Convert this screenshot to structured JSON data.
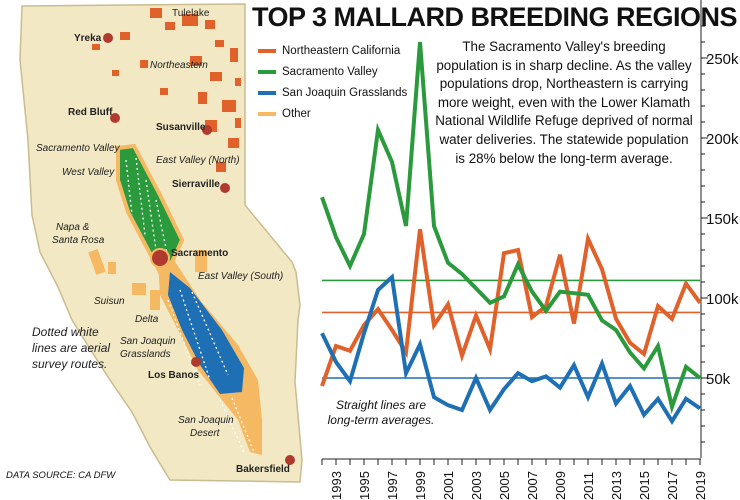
{
  "title": "TOP 3 MALLARD BREEDING REGIONS",
  "annotation": "The Sacramento Valley's breeding population is in sharp decline. As the valley populations drop, Northeastern is carrying more weight, even with the Lower Klamath National Wildlife Refuge deprived of normal water deliveries. The statewide population is 28% below the long-term average.",
  "longterm_note": "Straight lines are long-term averages.",
  "data_source": "DATA SOURCE: CA DFW",
  "legend": [
    {
      "label": "Northeastern California",
      "color": "#e0612a"
    },
    {
      "label": "Sacramento Valley",
      "color": "#2a9a3c"
    },
    {
      "label": "San Joaquin Grasslands",
      "color": "#1f6fb5"
    },
    {
      "label": "Other",
      "color": "#f5b964"
    }
  ],
  "colors": {
    "northeastern": "#e0612a",
    "sacramento": "#2a9a3c",
    "sanjoaquin": "#1f6fb5",
    "other": "#f5b964",
    "land": "#f2e8c4",
    "star": "#b03a2e"
  },
  "map": {
    "cities": [
      "Tulelake",
      "Yreka",
      "Red Bluff",
      "Susanville",
      "Sierraville",
      "Sacramento",
      "Los Banos",
      "Bakersfield"
    ],
    "regions": [
      "Northeastern",
      "Sacramento Valley",
      "East Valley (North)",
      "West Valley",
      "Napa & Santa Rosa",
      "East Valley (South)",
      "Suisun",
      "Delta",
      "San Joaquin Grasslands",
      "San Joaquin Desert"
    ],
    "note": "Dotted white lines are aerial survey routes."
  },
  "chart_data": {
    "type": "line",
    "title": "TOP 3 MALLARD BREEDING REGIONS",
    "x": [
      1992,
      1993,
      1994,
      1995,
      1996,
      1997,
      1998,
      1999,
      2000,
      2001,
      2002,
      2003,
      2004,
      2005,
      2006,
      2007,
      2008,
      2009,
      2010,
      2011,
      2012,
      2013,
      2014,
      2015,
      2016,
      2017,
      2018,
      2019
    ],
    "x_tick_labels": [
      "1993",
      "1995",
      "1997",
      "1999",
      "2001",
      "2003",
      "2005",
      "2007",
      "2009",
      "2011",
      "2013",
      "2015",
      "2017",
      "2019"
    ],
    "y_ticks": [
      "50k",
      "100k",
      "150k",
      "200k",
      "250k"
    ],
    "ylim": [
      0,
      275000
    ],
    "y_axis_position": "right",
    "series": [
      {
        "name": "Northeastern California",
        "color": "#e0612a",
        "values": [
          45000,
          70000,
          67000,
          83000,
          93000,
          80000,
          66000,
          143000,
          83000,
          96000,
          64000,
          89000,
          68000,
          128000,
          130000,
          88000,
          95000,
          127000,
          84000,
          137000,
          118000,
          87000,
          72000,
          65000,
          95000,
          87000,
          109000,
          97000
        ],
        "average": 91000
      },
      {
        "name": "Sacramento Valley",
        "color": "#2a9a3c",
        "values": [
          163000,
          138000,
          120000,
          140000,
          205000,
          185000,
          145000,
          260000,
          145000,
          122000,
          115000,
          106000,
          97000,
          101000,
          121000,
          104000,
          92000,
          104000,
          103000,
          102000,
          86000,
          80000,
          66000,
          56000,
          70000,
          32000,
          57000,
          50000
        ],
        "average": 111000
      },
      {
        "name": "San Joaquin Grasslands",
        "color": "#1f6fb5",
        "values": [
          78000,
          60000,
          48000,
          78000,
          105000,
          113000,
          53000,
          71000,
          38000,
          33000,
          30000,
          50000,
          30000,
          43000,
          53000,
          48000,
          51000,
          44000,
          58000,
          38000,
          59000,
          34000,
          45000,
          27000,
          37000,
          23000,
          37000,
          31000
        ],
        "average": 50000
      }
    ]
  }
}
